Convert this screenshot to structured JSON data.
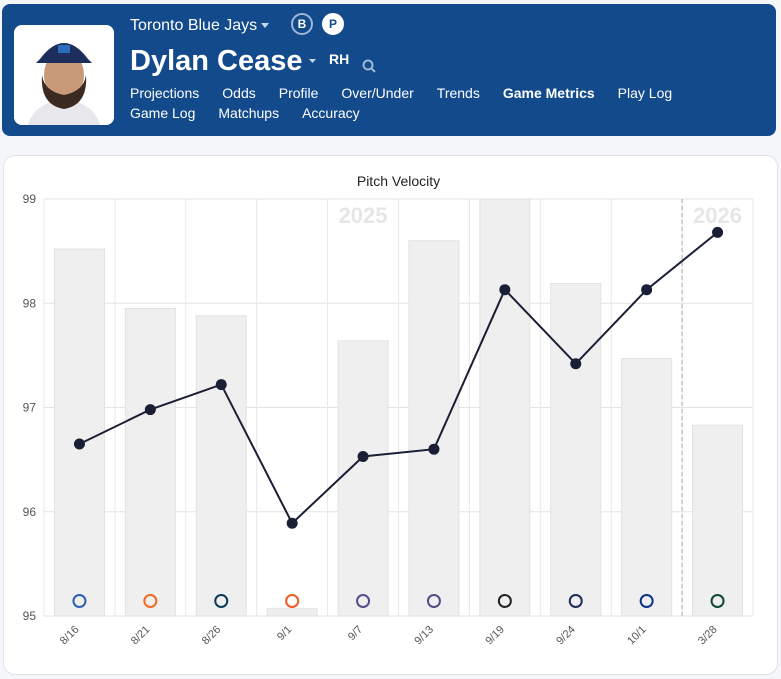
{
  "header": {
    "team": "Toronto Blue Jays",
    "badges": [
      "B",
      "P"
    ],
    "player": "Dylan Cease",
    "hand": "RH",
    "nav": [
      "Projections",
      "Odds",
      "Profile",
      "Over/Under",
      "Trends",
      "Game Metrics",
      "Play Log",
      "Game Log",
      "Matchups",
      "Accuracy"
    ],
    "active": "Game Metrics"
  },
  "chart_data": {
    "type": "bar-line",
    "title": "Pitch Velocity",
    "categories": [
      "8/16",
      "8/21",
      "8/26",
      "9/1",
      "9/7",
      "9/13",
      "9/19",
      "9/24",
      "10/1",
      "3/28"
    ],
    "series": [
      {
        "type": "bar",
        "color": "#efefef",
        "values": [
          98.52,
          97.95,
          97.88,
          95.07,
          97.64,
          98.6,
          99,
          98.19,
          97.47,
          96.83
        ]
      },
      {
        "type": "line",
        "color": "#1a1f36",
        "values": [
          96.65,
          96.98,
          97.22,
          95.89,
          96.53,
          96.6,
          98.13,
          97.42,
          98.13,
          98.68
        ]
      }
    ],
    "annotations": [
      "2025",
      "2026"
    ],
    "ylim": [
      95,
      99
    ],
    "yticks": [
      95,
      96,
      97,
      98,
      99
    ],
    "grid": true
  }
}
